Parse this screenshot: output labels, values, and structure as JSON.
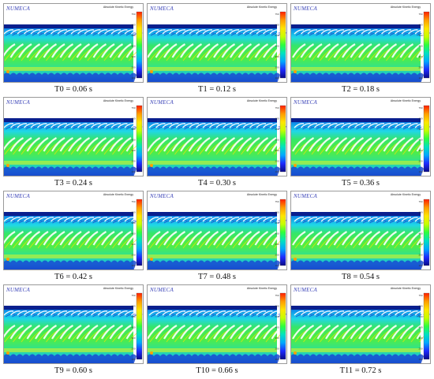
{
  "brand_label": "NUMECA",
  "legend_title": "Absolute Kinetic Energy",
  "legend_ticks": [
    "750",
    "600",
    "500",
    "400",
    "300",
    "200",
    "100"
  ],
  "colormap": [
    "#ff1e00",
    "#ff9c00",
    "#ffe600",
    "#c6ff00",
    "#2dff3c",
    "#00e2c0",
    "#00a8ff",
    "#1d2aff",
    "#0a0a86"
  ],
  "snapshots": [
    {
      "caption": "T0 = 0.06 s"
    },
    {
      "caption": "T1 = 0.12 s"
    },
    {
      "caption": "T2 = 0.18 s"
    },
    {
      "caption": "T3 = 0.24 s"
    },
    {
      "caption": "T4 = 0.30 s"
    },
    {
      "caption": "T5 = 0.36 s"
    },
    {
      "caption": "T6 = 0.42 s"
    },
    {
      "caption": "T7 = 0.48 s"
    },
    {
      "caption": "T8 = 0.54 s"
    },
    {
      "caption": "T9 = 0.60 s"
    },
    {
      "caption": "T10 = 0.66 s"
    },
    {
      "caption": "T11 = 0.72 s"
    }
  ]
}
